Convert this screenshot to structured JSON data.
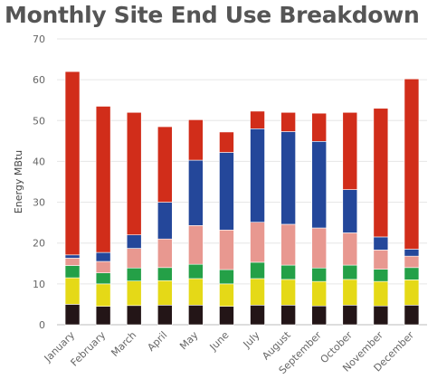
{
  "chart_data": {
    "type": "bar",
    "stacked": true,
    "title": "Monthly Site End Use Breakdown",
    "xlabel": "",
    "ylabel": "Energy MBtu",
    "ylim": [
      0,
      70
    ],
    "yticks": [
      0,
      10,
      20,
      30,
      40,
      50,
      60,
      70
    ],
    "grid": true,
    "legend": "none",
    "categories": [
      "January",
      "February",
      "March",
      "April",
      "May",
      "June",
      "July",
      "August",
      "September",
      "October",
      "November",
      "December"
    ],
    "series": [
      {
        "color": "#231517",
        "values": [
          5.0,
          4.5,
          4.7,
          4.8,
          4.8,
          4.5,
          4.8,
          4.8,
          4.6,
          4.8,
          4.6,
          4.8
        ]
      },
      {
        "color": "#e5d917",
        "values": [
          6.5,
          5.5,
          6.0,
          6.0,
          6.5,
          5.5,
          6.5,
          6.3,
          6.0,
          6.3,
          6.0,
          6.2
        ]
      },
      {
        "color": "#24a047",
        "values": [
          3.0,
          2.7,
          3.2,
          3.2,
          3.5,
          3.5,
          4.0,
          3.5,
          3.3,
          3.5,
          3.0,
          3.0
        ]
      },
      {
        "color": "#e89890",
        "values": [
          1.8,
          2.8,
          4.8,
          7.0,
          9.5,
          9.7,
          9.8,
          10.0,
          9.8,
          7.9,
          4.7,
          2.8
        ]
      },
      {
        "color": "#24479a",
        "values": [
          0.8,
          2.2,
          3.3,
          9.0,
          16.0,
          19.0,
          22.9,
          22.7,
          21.2,
          10.6,
          3.2,
          1.7
        ]
      },
      {
        "color": "#d12d1a",
        "values": [
          44.9,
          35.8,
          30.0,
          18.5,
          9.9,
          5.0,
          4.3,
          4.7,
          6.9,
          18.9,
          31.5,
          41.7
        ]
      }
    ]
  }
}
